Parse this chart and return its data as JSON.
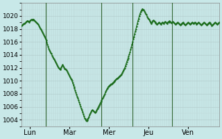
{
  "background_color": "#c8e8e8",
  "plot_bg_color": "#c8e8e8",
  "line_color": "#1a6b1a",
  "line_width": 0.8,
  "marker": ".",
  "marker_size": 1.5,
  "ylim": [
    1003,
    1022
  ],
  "yticks": [
    1004,
    1006,
    1008,
    1010,
    1012,
    1014,
    1016,
    1018,
    1020
  ],
  "ylabel_fontsize": 6.5,
  "xlabel_fontsize": 7,
  "grid_color": "#b0c8c8",
  "grid_linewidth": 0.4,
  "minor_grid_color": "#c0d8d8",
  "day_labels": [
    "Lun",
    "Mar",
    "Mer",
    "Jeu",
    "Ven"
  ],
  "day_tick_positions": [
    12,
    72,
    132,
    192,
    252
  ],
  "vline_positions": [
    36,
    120,
    168,
    228
  ],
  "total_points": 300,
  "pressure_data": [
    1018.5,
    1018.6,
    1018.7,
    1018.8,
    1018.8,
    1018.9,
    1019.0,
    1019.1,
    1019.2,
    1019.2,
    1019.1,
    1019.0,
    1019.2,
    1019.3,
    1019.4,
    1019.4,
    1019.3,
    1019.5,
    1019.4,
    1019.3,
    1019.2,
    1019.1,
    1019.0,
    1018.9,
    1018.8,
    1018.7,
    1018.5,
    1018.3,
    1018.1,
    1017.9,
    1017.7,
    1017.5,
    1017.3,
    1017.1,
    1016.9,
    1016.7,
    1016.5,
    1016.2,
    1015.9,
    1015.6,
    1015.3,
    1015.0,
    1014.7,
    1014.5,
    1014.3,
    1014.2,
    1013.9,
    1013.7,
    1013.5,
    1013.3,
    1013.1,
    1012.9,
    1012.7,
    1012.5,
    1012.3,
    1012.1,
    1012.0,
    1011.9,
    1011.7,
    1011.9,
    1012.1,
    1012.3,
    1012.5,
    1012.3,
    1012.1,
    1011.9,
    1011.8,
    1011.7,
    1011.6,
    1011.4,
    1011.2,
    1011.0,
    1010.8,
    1010.6,
    1010.4,
    1010.2,
    1010.0,
    1009.7,
    1009.4,
    1009.1,
    1008.8,
    1008.5,
    1008.2,
    1007.9,
    1007.6,
    1007.3,
    1007.0,
    1006.7,
    1006.4,
    1006.1,
    1005.8,
    1005.5,
    1005.2,
    1004.9,
    1004.6,
    1004.3,
    1004.1,
    1003.9,
    1003.8,
    1003.9,
    1004.1,
    1004.3,
    1004.5,
    1004.8,
    1005.0,
    1005.2,
    1005.4,
    1005.5,
    1005.4,
    1005.3,
    1005.2,
    1005.1,
    1005.2,
    1005.4,
    1005.6,
    1005.8,
    1006.0,
    1006.2,
    1006.4,
    1006.6,
    1006.8,
    1007.0,
    1007.2,
    1007.4,
    1007.6,
    1007.8,
    1008.0,
    1008.3,
    1008.5,
    1008.7,
    1008.9,
    1009.1,
    1009.2,
    1009.3,
    1009.4,
    1009.5,
    1009.5,
    1009.6,
    1009.7,
    1009.8,
    1009.9,
    1010.0,
    1010.1,
    1010.2,
    1010.3,
    1010.4,
    1010.5,
    1010.6,
    1010.7,
    1010.8,
    1010.9,
    1011.0,
    1011.2,
    1011.4,
    1011.6,
    1011.8,
    1012.0,
    1012.3,
    1012.6,
    1012.9,
    1013.2,
    1013.5,
    1013.8,
    1014.1,
    1014.4,
    1014.8,
    1015.2,
    1015.6,
    1016.0,
    1016.4,
    1016.8,
    1017.2,
    1017.6,
    1018.0,
    1018.4,
    1018.8,
    1019.2,
    1019.6,
    1020.0,
    1020.3,
    1020.6,
    1020.8,
    1021.0,
    1021.1,
    1021.0,
    1020.9,
    1020.7,
    1020.5,
    1020.3,
    1020.2,
    1019.9,
    1019.7,
    1019.6,
    1019.4,
    1019.2,
    1019.0,
    1018.8,
    1019.0,
    1019.2,
    1019.3,
    1019.2,
    1019.1,
    1019.0,
    1018.9,
    1018.8,
    1018.7,
    1018.8,
    1018.9,
    1019.0,
    1018.9,
    1018.8,
    1018.7,
    1018.9,
    1019.0,
    1018.9,
    1018.8,
    1019.0,
    1019.1,
    1019.0,
    1018.9,
    1018.8,
    1019.0,
    1019.1,
    1019.0,
    1019.2,
    1019.1,
    1019.0,
    1018.9,
    1019.0,
    1019.1,
    1019.0,
    1018.9,
    1018.8,
    1018.7,
    1018.8,
    1018.9,
    1019.0,
    1018.9,
    1018.8,
    1018.7,
    1018.6,
    1018.7,
    1018.8,
    1018.9,
    1019.0,
    1018.9,
    1018.8,
    1018.7,
    1018.6,
    1018.7,
    1018.8,
    1018.9,
    1019.0,
    1018.9,
    1018.8,
    1018.7,
    1018.8,
    1018.9,
    1019.0,
    1018.9,
    1018.8,
    1018.9,
    1019.0,
    1018.9,
    1018.8,
    1018.7,
    1018.8,
    1018.9,
    1019.0,
    1018.9,
    1018.8,
    1018.7,
    1018.6,
    1018.7,
    1018.8,
    1018.9,
    1019.0,
    1018.9,
    1018.8,
    1018.7,
    1018.6,
    1018.7,
    1018.8,
    1018.9,
    1019.0,
    1018.9,
    1018.8,
    1018.7,
    1018.5,
    1018.6,
    1018.7,
    1018.8,
    1018.9,
    1019.0,
    1018.9,
    1018.8,
    1018.7,
    1018.8,
    1018.9,
    1019.0
  ]
}
